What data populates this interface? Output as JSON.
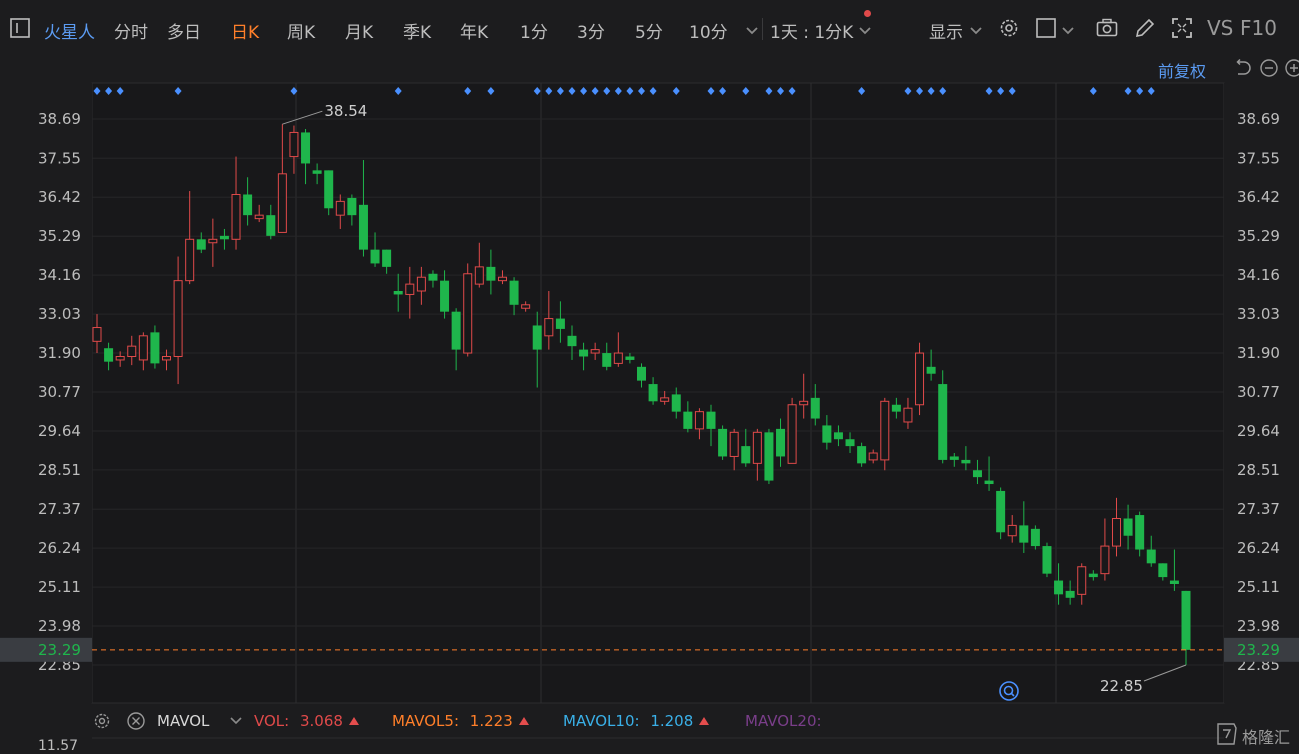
{
  "toolbar": {
    "stock_name": "火星人",
    "periods": [
      "分时",
      "多日",
      "日K",
      "周K",
      "月K",
      "季K",
      "年K",
      "1分",
      "3分",
      "5分",
      "10分"
    ],
    "active_period": "日K",
    "combo_period": "1天 : 1分K",
    "display_label": "显示",
    "vs_label": "VS",
    "f10_label": "F10",
    "adjust_label": "前复权"
  },
  "colors": {
    "up": "#e04a4a",
    "down": "#1fb64c",
    "accent": "#ff7f2a",
    "link": "#5b9bf2",
    "marker": "#4a90ff"
  },
  "chart_data": {
    "type": "candlestick",
    "y_ticks": [
      "38.69",
      "37.55",
      "36.42",
      "35.29",
      "34.16",
      "33.03",
      "31.90",
      "30.77",
      "29.64",
      "28.51",
      "27.37",
      "26.24",
      "25.11",
      "23.98",
      "22.85"
    ],
    "ylim": [
      22.85,
      38.69
    ],
    "current_price": "23.29",
    "high_label": "38.54",
    "low_label": "22.85",
    "candles": [
      [
        32.24,
        32.64,
        31.9,
        33.03
      ],
      [
        32.04,
        31.65,
        31.4,
        32.2
      ],
      [
        31.7,
        31.8,
        31.5,
        31.95
      ],
      [
        31.8,
        32.1,
        31.55,
        32.4
      ],
      [
        31.7,
        32.4,
        31.4,
        32.5
      ],
      [
        32.5,
        31.6,
        31.45,
        32.7
      ],
      [
        31.7,
        31.8,
        31.4,
        32.0
      ],
      [
        31.8,
        34.0,
        31.0,
        34.7
      ],
      [
        34.0,
        35.2,
        33.9,
        36.6
      ],
      [
        35.2,
        34.9,
        34.8,
        35.4
      ],
      [
        35.1,
        35.2,
        34.4,
        35.8
      ],
      [
        35.3,
        35.2,
        34.9,
        35.5
      ],
      [
        35.2,
        36.5,
        34.9,
        37.6
      ],
      [
        36.5,
        35.9,
        35.6,
        37.0
      ],
      [
        35.8,
        35.9,
        35.7,
        36.2
      ],
      [
        35.9,
        35.3,
        35.2,
        36.2
      ],
      [
        35.4,
        37.1,
        35.4,
        38.54
      ],
      [
        37.6,
        38.3,
        37.1,
        38.5
      ],
      [
        38.3,
        37.4,
        36.8,
        38.4
      ],
      [
        37.2,
        37.1,
        36.8,
        37.4
      ],
      [
        37.2,
        36.1,
        35.9,
        37.2
      ],
      [
        35.9,
        36.3,
        35.5,
        36.5
      ],
      [
        36.4,
        35.9,
        35.6,
        36.5
      ],
      [
        36.2,
        34.9,
        34.7,
        37.5
      ],
      [
        34.9,
        34.5,
        34.4,
        35.4
      ],
      [
        34.9,
        34.4,
        34.2,
        34.9
      ],
      [
        33.7,
        33.6,
        33.1,
        34.2
      ],
      [
        33.6,
        33.9,
        32.9,
        34.4
      ],
      [
        33.7,
        34.1,
        33.3,
        34.4
      ],
      [
        34.2,
        34.0,
        33.8,
        34.3
      ],
      [
        34.0,
        33.1,
        32.9,
        34.3
      ],
      [
        33.1,
        32.0,
        31.4,
        33.2
      ],
      [
        31.9,
        34.2,
        31.8,
        34.5
      ],
      [
        33.9,
        34.4,
        33.8,
        35.1
      ],
      [
        34.4,
        34.0,
        33.6,
        34.9
      ],
      [
        34.0,
        34.1,
        33.9,
        34.3
      ],
      [
        34.0,
        33.3,
        33.0,
        34.1
      ],
      [
        33.2,
        33.3,
        33.1,
        33.4
      ],
      [
        32.7,
        32.0,
        30.9,
        33.1
      ],
      [
        32.4,
        32.9,
        32.0,
        33.7
      ],
      [
        32.9,
        32.6,
        32.2,
        33.4
      ],
      [
        32.4,
        32.1,
        31.7,
        32.7
      ],
      [
        32.0,
        31.8,
        31.4,
        32.2
      ],
      [
        31.9,
        32.0,
        31.7,
        32.2
      ],
      [
        31.9,
        31.5,
        31.4,
        32.2
      ],
      [
        31.6,
        31.9,
        31.5,
        32.5
      ],
      [
        31.8,
        31.7,
        31.6,
        31.9
      ],
      [
        31.5,
        31.1,
        30.9,
        31.6
      ],
      [
        31.0,
        30.5,
        30.4,
        31.2
      ],
      [
        30.5,
        30.6,
        30.4,
        30.8
      ],
      [
        30.7,
        30.2,
        30.0,
        30.9
      ],
      [
        30.2,
        29.7,
        29.6,
        30.5
      ],
      [
        29.7,
        30.2,
        29.4,
        30.3
      ],
      [
        30.2,
        29.7,
        29.2,
        30.4
      ],
      [
        29.7,
        28.9,
        28.8,
        29.8
      ],
      [
        28.9,
        29.6,
        28.5,
        29.7
      ],
      [
        29.2,
        28.7,
        28.6,
        29.7
      ],
      [
        28.7,
        29.6,
        28.2,
        29.7
      ],
      [
        29.6,
        28.2,
        28.1,
        29.7
      ],
      [
        29.7,
        28.9,
        28.6,
        30.0
      ],
      [
        28.7,
        30.4,
        28.7,
        30.6
      ],
      [
        30.4,
        30.5,
        30.0,
        31.3
      ],
      [
        30.6,
        30.0,
        29.8,
        31.0
      ],
      [
        29.8,
        29.3,
        29.1,
        30.1
      ],
      [
        29.6,
        29.4,
        29.2,
        29.8
      ],
      [
        29.4,
        29.2,
        29.0,
        29.6
      ],
      [
        29.2,
        28.7,
        28.6,
        29.3
      ],
      [
        28.8,
        29.0,
        28.7,
        29.1
      ],
      [
        28.8,
        30.5,
        28.5,
        30.6
      ],
      [
        30.4,
        30.2,
        30.0,
        30.6
      ],
      [
        29.9,
        30.3,
        29.7,
        30.6
      ],
      [
        30.4,
        31.9,
        30.1,
        32.2
      ],
      [
        31.5,
        31.3,
        31.1,
        32.0
      ],
      [
        31.0,
        28.8,
        28.7,
        31.4
      ],
      [
        28.9,
        28.8,
        28.6,
        29.0
      ],
      [
        28.8,
        28.7,
        28.5,
        29.2
      ],
      [
        28.5,
        28.3,
        28.1,
        28.8
      ],
      [
        28.2,
        28.1,
        27.9,
        28.9
      ],
      [
        27.9,
        26.7,
        26.5,
        28.0
      ],
      [
        26.6,
        26.9,
        26.4,
        27.2
      ],
      [
        26.9,
        26.4,
        26.1,
        27.6
      ],
      [
        26.8,
        26.3,
        26.2,
        26.9
      ],
      [
        26.3,
        25.5,
        25.4,
        26.4
      ],
      [
        25.3,
        24.9,
        24.6,
        25.8
      ],
      [
        25.0,
        24.8,
        24.6,
        25.3
      ],
      [
        24.9,
        25.7,
        24.6,
        25.8
      ],
      [
        25.5,
        25.4,
        25.3,
        25.6
      ],
      [
        25.5,
        26.3,
        25.3,
        27.1
      ],
      [
        26.3,
        27.1,
        26.0,
        27.7
      ],
      [
        27.1,
        26.6,
        26.2,
        27.5
      ],
      [
        27.2,
        26.2,
        26.0,
        27.3
      ],
      [
        26.2,
        25.8,
        25.7,
        26.6
      ],
      [
        25.8,
        25.4,
        25.3,
        25.8
      ],
      [
        25.3,
        25.2,
        25.0,
        26.2
      ],
      [
        25.0,
        23.29,
        22.85,
        25.0
      ]
    ],
    "event_markers": [
      0,
      1,
      2,
      7,
      17,
      26,
      32,
      34,
      38,
      39,
      40,
      41,
      42,
      43,
      44,
      45,
      46,
      47,
      48,
      50,
      53,
      54,
      56,
      58,
      59,
      60,
      66,
      70,
      71,
      72,
      73,
      77,
      78,
      79,
      86,
      89,
      90,
      91
    ]
  },
  "indicator": {
    "name": "MAVOL",
    "vol_label": "VOL:",
    "vol_value": "3.068",
    "mavol5_label": "MAVOL5:",
    "mavol5_value": "1.223",
    "mavol10_label": "MAVOL10:",
    "mavol10_value": "1.208",
    "mavol20_label": "MAVOL20:",
    "vol_axis_label": "11.57"
  },
  "watermark": "格隆汇"
}
